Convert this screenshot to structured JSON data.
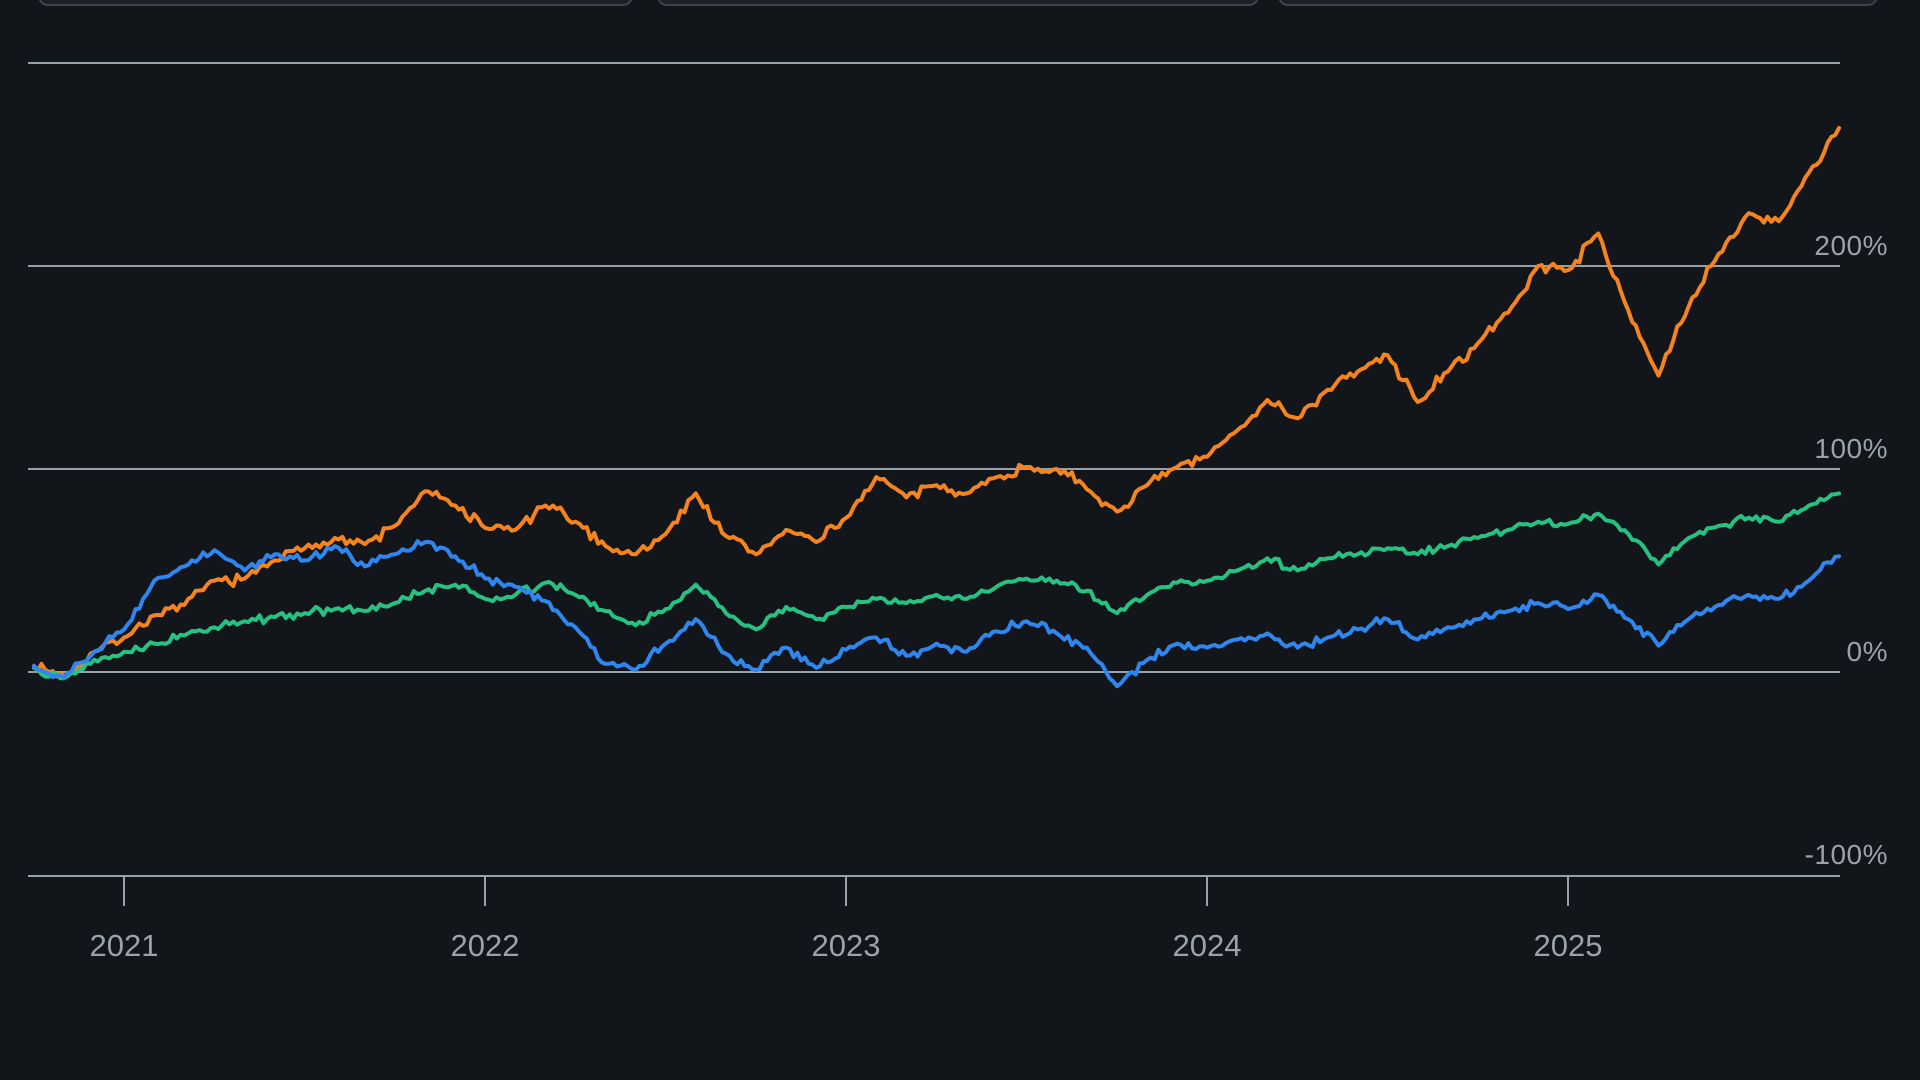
{
  "colors": {
    "background": "#12151a",
    "gridline": "#99a1a8",
    "axis_label": "#9aa2ab",
    "card_border": "#3e444b",
    "card_fill": "#1d2127",
    "series_orange": "#f5831e",
    "series_green": "#27c281",
    "series_blue": "#2f86ee"
  },
  "top_cards": {
    "count": 3,
    "note": "three comparison cards clipped at top edge of viewport, no text visible"
  },
  "chart_data": {
    "type": "line",
    "title": "",
    "xlabel": "",
    "ylabel": "",
    "unit": "%",
    "grid": true,
    "legend_position": "none",
    "x_axis": {
      "tick_labels": [
        "2021",
        "2022",
        "2023",
        "2024",
        "2025"
      ]
    },
    "y_axis": {
      "tick_labels": [
        "200%",
        "100%",
        "0%",
        "-100%"
      ],
      "gridline_values": [
        300,
        200,
        100,
        0,
        -100
      ],
      "range": [
        -100,
        300
      ]
    },
    "x_start": "2020-10",
    "x_step_months": 1,
    "series": [
      {
        "name": "series-orange",
        "color": "#f5831e",
        "values": [
          3,
          -2,
          10,
          17,
          28,
          33,
          45,
          46,
          55,
          61,
          66,
          63,
          72,
          89,
          82,
          71,
          70,
          82,
          74,
          62,
          58,
          68,
          88,
          67,
          58,
          70,
          64,
          76,
          96,
          86,
          92,
          88,
          96,
          101,
          100,
          90,
          79,
          92,
          101,
          106,
          119,
          134,
          125,
          139,
          148,
          156,
          133,
          148,
          162,
          177,
          200,
          198,
          216,
          178,
          146,
          180,
          206,
          226,
          222,
          246,
          268
        ]
      },
      {
        "name": "series-green",
        "color": "#27c281",
        "values": [
          2,
          -3,
          6,
          10,
          14,
          18,
          22,
          25,
          27,
          29,
          31,
          30,
          34,
          40,
          43,
          36,
          38,
          44,
          38,
          30,
          23,
          31,
          43,
          29,
          21,
          32,
          26,
          32,
          36,
          34,
          38,
          36,
          42,
          46,
          45,
          40,
          29,
          38,
          44,
          45,
          50,
          56,
          50,
          56,
          58,
          61,
          58,
          62,
          66,
          70,
          74,
          73,
          78,
          68,
          53,
          66,
          72,
          76,
          74,
          82,
          88
        ]
      },
      {
        "name": "series-blue",
        "color": "#2f86ee",
        "values": [
          3,
          -3,
          10,
          21,
          45,
          52,
          60,
          50,
          58,
          55,
          62,
          52,
          58,
          64,
          57,
          46,
          42,
          35,
          22,
          4,
          1,
          14,
          26,
          9,
          1,
          12,
          2,
          11,
          17,
          8,
          14,
          10,
          20,
          25,
          19,
          12,
          -7,
          6,
          14,
          12,
          16,
          19,
          12,
          17,
          21,
          26,
          16,
          22,
          26,
          30,
          34,
          31,
          38,
          26,
          13,
          26,
          33,
          38,
          36,
          45,
          57
        ]
      }
    ]
  }
}
